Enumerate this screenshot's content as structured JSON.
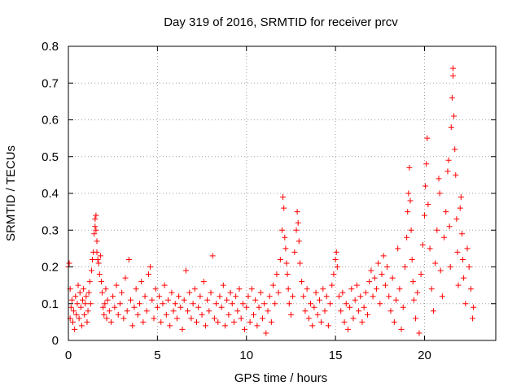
{
  "chart_data": {
    "type": "scatter",
    "title": "Day 319 of 2016, SRMTID for receiver prcv",
    "xlabel": "GPS time / hours",
    "ylabel": "SRMTID / TECUs",
    "xlim": [
      0,
      24
    ],
    "ylim": [
      0,
      0.8
    ],
    "xticks": [
      0,
      5,
      10,
      15,
      20
    ],
    "yticks": [
      0,
      0.1,
      0.2,
      0.3,
      0.4,
      0.5,
      0.6,
      0.7,
      0.8
    ],
    "xtick_labels": [
      "0",
      "5",
      "10",
      "15",
      "20"
    ],
    "ytick_labels": [
      "0",
      "0.1",
      "0.2",
      "0.3",
      "0.4",
      "0.5",
      "0.6",
      "0.7",
      "0.8"
    ],
    "grid": true,
    "marker": "+",
    "color": "#ff0000",
    "series": [
      {
        "name": "SRMTID",
        "points": [
          [
            0.0,
            0.2
          ],
          [
            0.05,
            0.21
          ],
          [
            0.1,
            0.14
          ],
          [
            0.1,
            0.06
          ],
          [
            0.15,
            0.09
          ],
          [
            0.2,
            0.11
          ],
          [
            0.25,
            0.05
          ],
          [
            0.3,
            0.08
          ],
          [
            0.35,
            0.03
          ],
          [
            0.4,
            0.12
          ],
          [
            0.45,
            0.07
          ],
          [
            0.5,
            0.1
          ],
          [
            0.55,
            0.15
          ],
          [
            0.6,
            0.06
          ],
          [
            0.65,
            0.13
          ],
          [
            0.7,
            0.09
          ],
          [
            0.75,
            0.04
          ],
          [
            0.8,
            0.11
          ],
          [
            0.85,
            0.14
          ],
          [
            0.9,
            0.07
          ],
          [
            0.95,
            0.1
          ],
          [
            1.0,
            0.12
          ],
          [
            1.05,
            0.05
          ],
          [
            1.1,
            0.08
          ],
          [
            1.15,
            0.13
          ],
          [
            1.2,
            0.16
          ],
          [
            1.25,
            0.1
          ],
          [
            1.3,
            0.19
          ],
          [
            1.35,
            0.22
          ],
          [
            1.4,
            0.24
          ],
          [
            1.45,
            0.29
          ],
          [
            1.5,
            0.33
          ],
          [
            1.5,
            0.31
          ],
          [
            1.55,
            0.34
          ],
          [
            1.55,
            0.3
          ],
          [
            1.6,
            0.27
          ],
          [
            1.6,
            0.24
          ],
          [
            1.65,
            0.22
          ],
          [
            1.7,
            0.21
          ],
          [
            1.75,
            0.18
          ],
          [
            1.8,
            0.23
          ],
          [
            1.85,
            0.16
          ],
          [
            1.9,
            0.13
          ],
          [
            1.95,
            0.09
          ],
          [
            2.0,
            0.07
          ],
          [
            2.05,
            0.1
          ],
          [
            2.1,
            0.14
          ],
          [
            2.15,
            0.06
          ],
          [
            2.2,
            0.11
          ],
          [
            2.3,
            0.08
          ],
          [
            2.4,
            0.05
          ],
          [
            2.5,
            0.12
          ],
          [
            2.6,
            0.09
          ],
          [
            2.7,
            0.15
          ],
          [
            2.8,
            0.07
          ],
          [
            2.9,
            0.1
          ],
          [
            3.0,
            0.13
          ],
          [
            3.1,
            0.06
          ],
          [
            3.2,
            0.17
          ],
          [
            3.3,
            0.08
          ],
          [
            3.4,
            0.22
          ],
          [
            3.5,
            0.11
          ],
          [
            3.6,
            0.04
          ],
          [
            3.7,
            0.09
          ],
          [
            3.8,
            0.14
          ],
          [
            3.9,
            0.07
          ],
          [
            4.0,
            0.1
          ],
          [
            4.1,
            0.16
          ],
          [
            4.2,
            0.05
          ],
          [
            4.3,
            0.12
          ],
          [
            4.4,
            0.08
          ],
          [
            4.5,
            0.18
          ],
          [
            4.6,
            0.2
          ],
          [
            4.7,
            0.11
          ],
          [
            4.8,
            0.06
          ],
          [
            4.9,
            0.14
          ],
          [
            5.0,
            0.09
          ],
          [
            5.1,
            0.12
          ],
          [
            5.2,
            0.05
          ],
          [
            5.3,
            0.1
          ],
          [
            5.4,
            0.15
          ],
          [
            5.5,
            0.07
          ],
          [
            5.6,
            0.11
          ],
          [
            5.7,
            0.04
          ],
          [
            5.8,
            0.13
          ],
          [
            5.9,
            0.08
          ],
          [
            6.0,
            0.1
          ],
          [
            6.1,
            0.06
          ],
          [
            6.2,
            0.12
          ],
          [
            6.3,
            0.09
          ],
          [
            6.4,
            0.03
          ],
          [
            6.5,
            0.11
          ],
          [
            6.6,
            0.19
          ],
          [
            6.7,
            0.08
          ],
          [
            6.8,
            0.13
          ],
          [
            6.9,
            0.06
          ],
          [
            7.0,
            0.1
          ],
          [
            7.1,
            0.14
          ],
          [
            7.2,
            0.05
          ],
          [
            7.3,
            0.09
          ],
          [
            7.4,
            0.12
          ],
          [
            7.5,
            0.07
          ],
          [
            7.6,
            0.16
          ],
          [
            7.7,
            0.04
          ],
          [
            7.8,
            0.11
          ],
          [
            7.9,
            0.08
          ],
          [
            8.0,
            0.13
          ],
          [
            8.1,
            0.23
          ],
          [
            8.2,
            0.06
          ],
          [
            8.3,
            0.1
          ],
          [
            8.4,
            0.05
          ],
          [
            8.5,
            0.12
          ],
          [
            8.6,
            0.09
          ],
          [
            8.7,
            0.15
          ],
          [
            8.8,
            0.04
          ],
          [
            8.9,
            0.11
          ],
          [
            9.0,
            0.07
          ],
          [
            9.1,
            0.13
          ],
          [
            9.2,
            0.1
          ],
          [
            9.3,
            0.05
          ],
          [
            9.4,
            0.12
          ],
          [
            9.5,
            0.08
          ],
          [
            9.6,
            0.14
          ],
          [
            9.7,
            0.06
          ],
          [
            9.8,
            0.1
          ],
          [
            9.9,
            0.03
          ],
          [
            10.0,
            0.09
          ],
          [
            10.1,
            0.12
          ],
          [
            10.2,
            0.05
          ],
          [
            10.3,
            0.14
          ],
          [
            10.4,
            0.07
          ],
          [
            10.5,
            0.11
          ],
          [
            10.6,
            0.04
          ],
          [
            10.7,
            0.09
          ],
          [
            10.8,
            0.13
          ],
          [
            10.9,
            0.06
          ],
          [
            11.0,
            0.1
          ],
          [
            11.1,
            0.02
          ],
          [
            11.2,
            0.08
          ],
          [
            11.3,
            0.12
          ],
          [
            11.4,
            0.05
          ],
          [
            11.5,
            0.15
          ],
          [
            11.6,
            0.1
          ],
          [
            11.7,
            0.18
          ],
          [
            11.8,
            0.13
          ],
          [
            11.9,
            0.22
          ],
          [
            12.0,
            0.3
          ],
          [
            12.05,
            0.39
          ],
          [
            12.1,
            0.36
          ],
          [
            12.15,
            0.28
          ],
          [
            12.2,
            0.25
          ],
          [
            12.25,
            0.21
          ],
          [
            12.3,
            0.18
          ],
          [
            12.35,
            0.14
          ],
          [
            12.4,
            0.1
          ],
          [
            12.5,
            0.07
          ],
          [
            12.6,
            0.12
          ],
          [
            12.7,
            0.24
          ],
          [
            12.8,
            0.3
          ],
          [
            12.85,
            0.35
          ],
          [
            12.9,
            0.32
          ],
          [
            12.95,
            0.27
          ],
          [
            13.0,
            0.21
          ],
          [
            13.1,
            0.16
          ],
          [
            13.2,
            0.12
          ],
          [
            13.3,
            0.08
          ],
          [
            13.4,
            0.14
          ],
          [
            13.5,
            0.06
          ],
          [
            13.6,
            0.1
          ],
          [
            13.7,
            0.04
          ],
          [
            13.8,
            0.09
          ],
          [
            13.9,
            0.13
          ],
          [
            14.0,
            0.07
          ],
          [
            14.1,
            0.11
          ],
          [
            14.2,
            0.05
          ],
          [
            14.3,
            0.14
          ],
          [
            14.4,
            0.08
          ],
          [
            14.5,
            0.12
          ],
          [
            14.6,
            0.04
          ],
          [
            14.7,
            0.1
          ],
          [
            14.8,
            0.15
          ],
          [
            14.9,
            0.18
          ],
          [
            15.0,
            0.22
          ],
          [
            15.05,
            0.24
          ],
          [
            15.1,
            0.2
          ],
          [
            15.2,
            0.12
          ],
          [
            15.3,
            0.08
          ],
          [
            15.4,
            0.13
          ],
          [
            15.5,
            0.05
          ],
          [
            15.6,
            0.1
          ],
          [
            15.7,
            0.03
          ],
          [
            15.8,
            0.09
          ],
          [
            15.9,
            0.14
          ],
          [
            16.0,
            0.06
          ],
          [
            16.1,
            0.11
          ],
          [
            16.2,
            0.15
          ],
          [
            16.3,
            0.08
          ],
          [
            16.4,
            0.12
          ],
          [
            16.5,
            0.05
          ],
          [
            16.6,
            0.09
          ],
          [
            16.7,
            0.13
          ],
          [
            16.8,
            0.07
          ],
          [
            16.9,
            0.16
          ],
          [
            17.0,
            0.19
          ],
          [
            17.1,
            0.12
          ],
          [
            17.2,
            0.17
          ],
          [
            17.3,
            0.14
          ],
          [
            17.4,
            0.21
          ],
          [
            17.5,
            0.1
          ],
          [
            17.6,
            0.18
          ],
          [
            17.7,
            0.23
          ],
          [
            17.8,
            0.15
          ],
          [
            17.9,
            0.2
          ],
          [
            18.0,
            0.12
          ],
          [
            18.1,
            0.08
          ],
          [
            18.2,
            0.17
          ],
          [
            18.3,
            0.05
          ],
          [
            18.4,
            0.11
          ],
          [
            18.5,
            0.25
          ],
          [
            18.6,
            0.14
          ],
          [
            18.7,
            0.03
          ],
          [
            18.8,
            0.09
          ],
          [
            18.9,
            0.2
          ],
          [
            19.0,
            0.28
          ],
          [
            19.05,
            0.35
          ],
          [
            19.1,
            0.4
          ],
          [
            19.15,
            0.47
          ],
          [
            19.2,
            0.38
          ],
          [
            19.25,
            0.3
          ],
          [
            19.3,
            0.22
          ],
          [
            19.35,
            0.16
          ],
          [
            19.4,
            0.11
          ],
          [
            19.5,
            0.06
          ],
          [
            19.6,
            0.13
          ],
          [
            19.7,
            0.02
          ],
          [
            19.8,
            0.18
          ],
          [
            19.9,
            0.26
          ],
          [
            20.0,
            0.34
          ],
          [
            20.05,
            0.42
          ],
          [
            20.1,
            0.48
          ],
          [
            20.15,
            0.55
          ],
          [
            20.2,
            0.37
          ],
          [
            20.3,
            0.25
          ],
          [
            20.4,
            0.14
          ],
          [
            20.5,
            0.08
          ],
          [
            20.6,
            0.21
          ],
          [
            20.7,
            0.3
          ],
          [
            20.8,
            0.44
          ],
          [
            20.85,
            0.4
          ],
          [
            20.9,
            0.19
          ],
          [
            21.0,
            0.12
          ],
          [
            21.1,
            0.28
          ],
          [
            21.2,
            0.35
          ],
          [
            21.3,
            0.46
          ],
          [
            21.35,
            0.49
          ],
          [
            21.4,
            0.31
          ],
          [
            21.45,
            0.2
          ],
          [
            21.5,
            0.58
          ],
          [
            21.55,
            0.66
          ],
          [
            21.6,
            0.74
          ],
          [
            21.6,
            0.72
          ],
          [
            21.65,
            0.61
          ],
          [
            21.7,
            0.52
          ],
          [
            21.75,
            0.45
          ],
          [
            21.8,
            0.33
          ],
          [
            21.85,
            0.24
          ],
          [
            21.9,
            0.15
          ],
          [
            22.0,
            0.36
          ],
          [
            22.05,
            0.39
          ],
          [
            22.1,
            0.29
          ],
          [
            22.15,
            0.22
          ],
          [
            22.2,
            0.17
          ],
          [
            22.3,
            0.1
          ],
          [
            22.4,
            0.25
          ],
          [
            22.5,
            0.2
          ],
          [
            22.6,
            0.14
          ],
          [
            22.7,
            0.06
          ],
          [
            22.75,
            0.09
          ]
        ]
      }
    ]
  }
}
